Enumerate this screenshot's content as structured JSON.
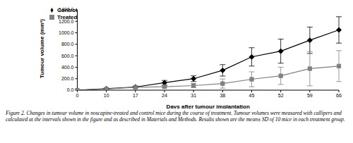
{
  "chart_data": {
    "type": "line",
    "x_label": "Days after tumour implantation",
    "y_label": "Tumour volume (mm³)",
    "caption": "Figure 2. Changes in tumour volume in noscapine-treated and control mice during the course of treatment. Tumour volumes were measured with callipers and calculated at the intervals shown in the figure and as described in Materials and Methods. Results shown are the mean± SD of 10 mice in each treatment group.",
    "categories": [
      "0",
      "10",
      "17",
      "24",
      "31",
      "38",
      "45",
      "52",
      "59",
      "66"
    ],
    "series": [
      {
        "name": "Control",
        "color": "#000000",
        "marker": "diamond",
        "values": [
          0,
          25,
          55,
          130,
          200,
          345,
          580,
          680,
          870,
          1050
        ],
        "error": [
          0,
          10,
          15,
          40,
          50,
          100,
          160,
          210,
          230,
          230
        ]
      },
      {
        "name": "Treated",
        "color": "#808080",
        "marker": "square",
        "values": [
          0,
          20,
          50,
          60,
          80,
          115,
          190,
          250,
          375,
          420
        ],
        "error": [
          0,
          5,
          10,
          20,
          35,
          80,
          130,
          150,
          300,
          270
        ]
      }
    ],
    "ylim": [
      0,
      1400
    ],
    "yticks": [
      {
        "value": 0,
        "label": "0.0"
      },
      {
        "value": 200,
        "label": "200.0"
      },
      {
        "value": 400,
        "label": "400.0"
      },
      {
        "value": 600,
        "label": "600.0"
      },
      {
        "value": 800,
        "label": "800.0"
      },
      {
        "value": 1000,
        "label": "1000.0"
      },
      {
        "value": 1200,
        "label": "1200.0"
      },
      {
        "value": 1400,
        "label": "1400.0"
      }
    ],
    "grid": false,
    "legend": "upper left"
  }
}
